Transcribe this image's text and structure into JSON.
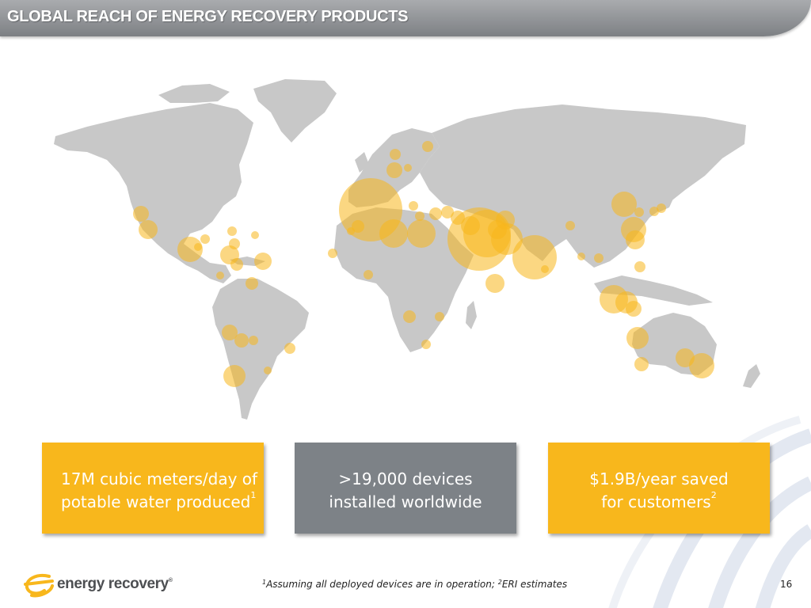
{
  "title": "GLOBAL REACH OF ENERGY RECOVERY PRODUCTS",
  "colors": {
    "title_bar": "#8e9094",
    "stat_yellow": "#f8b71c",
    "stat_gray": "#7d8287",
    "land": "#c8c8c8",
    "installation_bubble": "#f8b71c"
  },
  "map": {
    "icon": "world-map-with-installation-bubbles"
  },
  "stats": [
    {
      "line1": "17M cubic meters/day of",
      "line2": "potable water produced",
      "sup": "1"
    },
    {
      "line1": ">19,000 devices",
      "line2": "installed worldwide",
      "sup": ""
    },
    {
      "line1": "$1.9B/year saved",
      "line2": "for customers",
      "sup": "2"
    }
  ],
  "footer": {
    "logo_text": "energy recovery",
    "logo_mark": "®",
    "footnote_sup1": "1",
    "footnote_part1": "Assuming all deployed devices are in operation; ",
    "footnote_sup2": "2",
    "footnote_part2": "ERI estimates",
    "page_number": "16"
  }
}
